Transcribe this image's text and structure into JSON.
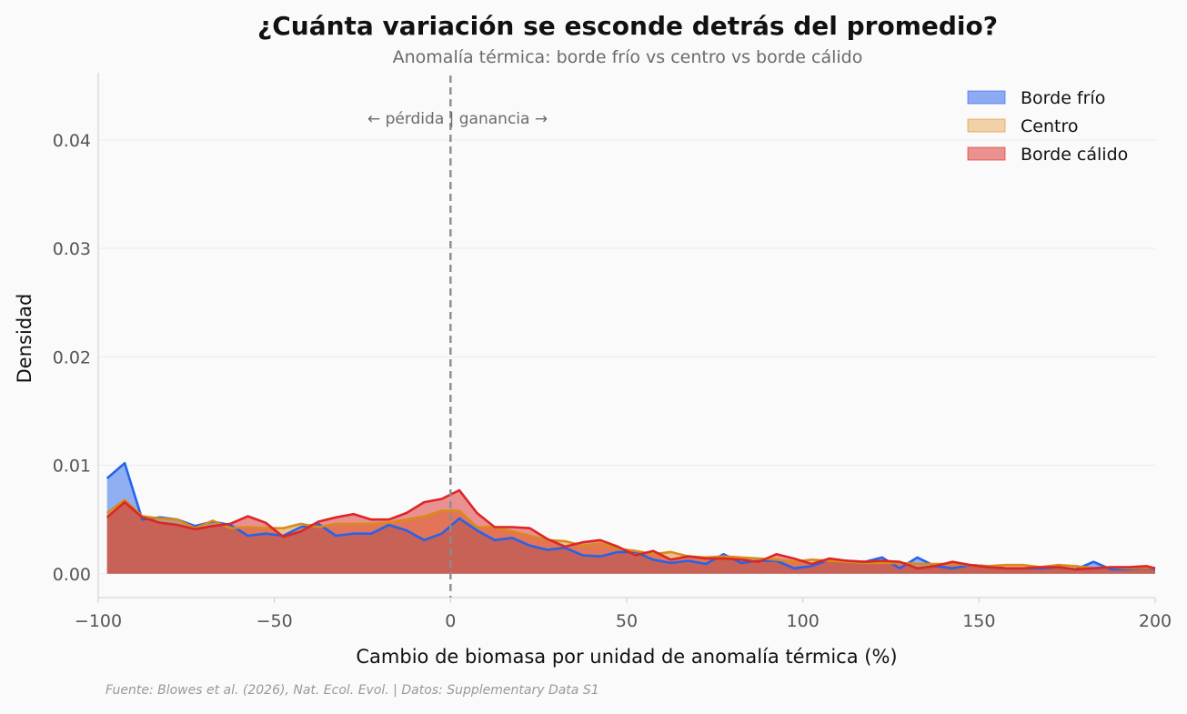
{
  "chart_data": {
    "type": "area",
    "title": "¿Cuánta variación se esconde detrás del promedio?",
    "subtitle": "Anomalía térmica: borde frío vs centro vs borde cálido",
    "xlabel": "Cambio de biomasa por unidad de anomalía térmica (%)",
    "ylabel": "Densidad",
    "xlim": [
      -100,
      200
    ],
    "ylim": [
      -0.0022,
      0.0462
    ],
    "x_ticks": [
      -100,
      -50,
      0,
      50,
      100,
      150,
      200
    ],
    "x_tick_labels": [
      "−100",
      "−50",
      "0",
      "50",
      "100",
      "150",
      "200"
    ],
    "y_ticks": [
      0.0,
      0.01,
      0.02,
      0.03,
      0.04
    ],
    "y_tick_labels": [
      "0.00",
      "0.01",
      "0.02",
      "0.03",
      "0.04"
    ],
    "grid": "horizontal",
    "legend_position": "top-right",
    "reference_line": {
      "x": 0,
      "label": "← pérdida | ganancia →"
    },
    "source": "Fuente: Blowes et al. (2026), Nat. Ecol. Evol. | Datos: Supplementary Data S1",
    "x": [
      -97.5,
      -92.5,
      -87.5,
      -82.5,
      -77.5,
      -72.5,
      -67.5,
      -62.5,
      -57.5,
      -52.5,
      -47.5,
      -42.5,
      -37.5,
      -32.5,
      -27.5,
      -22.5,
      -17.5,
      -12.5,
      -7.5,
      -2.5,
      2.5,
      7.5,
      12.5,
      17.5,
      22.5,
      27.5,
      32.5,
      37.5,
      42.5,
      47.5,
      52.5,
      57.5,
      62.5,
      67.5,
      72.5,
      77.5,
      82.5,
      87.5,
      92.5,
      97.5,
      102.5,
      107.5,
      112.5,
      117.5,
      122.5,
      127.5,
      132.5,
      137.5,
      142.5,
      147.5,
      152.5,
      157.5,
      162.5,
      167.5,
      172.5,
      177.5,
      182.5,
      187.5,
      192.5,
      197.5,
      200
    ],
    "series": [
      {
        "name": "Borde frío",
        "color": "#2563eb",
        "fill": "#8daaf2",
        "values": [
          0.0088,
          0.0102,
          0.005,
          0.0052,
          0.005,
          0.0044,
          0.0048,
          0.0045,
          0.0035,
          0.0037,
          0.0035,
          0.0043,
          0.0046,
          0.0035,
          0.0037,
          0.0037,
          0.0045,
          0.004,
          0.0031,
          0.0037,
          0.0051,
          0.004,
          0.0031,
          0.0033,
          0.0026,
          0.0022,
          0.0024,
          0.0017,
          0.0016,
          0.002,
          0.002,
          0.0013,
          0.001,
          0.0012,
          0.0009,
          0.0018,
          0.001,
          0.0012,
          0.0012,
          0.0005,
          0.0007,
          0.0013,
          0.0012,
          0.0011,
          0.0015,
          0.0005,
          0.0015,
          0.0007,
          0.0005,
          0.0008,
          0.0007,
          0.0005,
          0.0005,
          0.0005,
          0.0006,
          0.0004,
          0.0011,
          0.0004,
          0.0004,
          0.0006,
          0.0004
        ]
      },
      {
        "name": "Centro",
        "color": "#d98a1b",
        "fill": "#f1d1a8",
        "values": [
          0.0056,
          0.0068,
          0.0053,
          0.0051,
          0.005,
          0.0042,
          0.0049,
          0.0042,
          0.0043,
          0.0042,
          0.0042,
          0.0046,
          0.0043,
          0.0046,
          0.0046,
          0.0046,
          0.0047,
          0.005,
          0.0053,
          0.0058,
          0.0058,
          0.0043,
          0.0043,
          0.0039,
          0.0035,
          0.0031,
          0.003,
          0.0026,
          0.0028,
          0.0023,
          0.0021,
          0.0018,
          0.002,
          0.0016,
          0.0015,
          0.0016,
          0.0015,
          0.0014,
          0.0013,
          0.0011,
          0.0013,
          0.0012,
          0.0011,
          0.001,
          0.001,
          0.001,
          0.0009,
          0.0009,
          0.0009,
          0.0008,
          0.0007,
          0.0008,
          0.0008,
          0.0006,
          0.0008,
          0.0007,
          0.0005,
          0.0006,
          0.0005,
          0.0006,
          0.0005
        ]
      },
      {
        "name": "Borde cálido",
        "color": "#dc2626",
        "fill": "#eb9190",
        "values": [
          0.0052,
          0.0066,
          0.0052,
          0.0047,
          0.0045,
          0.0041,
          0.0044,
          0.0046,
          0.0053,
          0.0047,
          0.0034,
          0.0039,
          0.0048,
          0.0052,
          0.0055,
          0.005,
          0.005,
          0.0056,
          0.0066,
          0.0069,
          0.0077,
          0.0056,
          0.0043,
          0.0043,
          0.0042,
          0.0032,
          0.0025,
          0.0029,
          0.0031,
          0.0025,
          0.0017,
          0.0021,
          0.0013,
          0.0016,
          0.0014,
          0.0014,
          0.0013,
          0.0011,
          0.0018,
          0.0014,
          0.0009,
          0.0014,
          0.0012,
          0.0011,
          0.0012,
          0.0011,
          0.0005,
          0.0007,
          0.0011,
          0.0008,
          0.0006,
          0.0005,
          0.0005,
          0.0006,
          0.0006,
          0.0004,
          0.0005,
          0.0006,
          0.0006,
          0.0007,
          0.0005
        ]
      }
    ]
  }
}
